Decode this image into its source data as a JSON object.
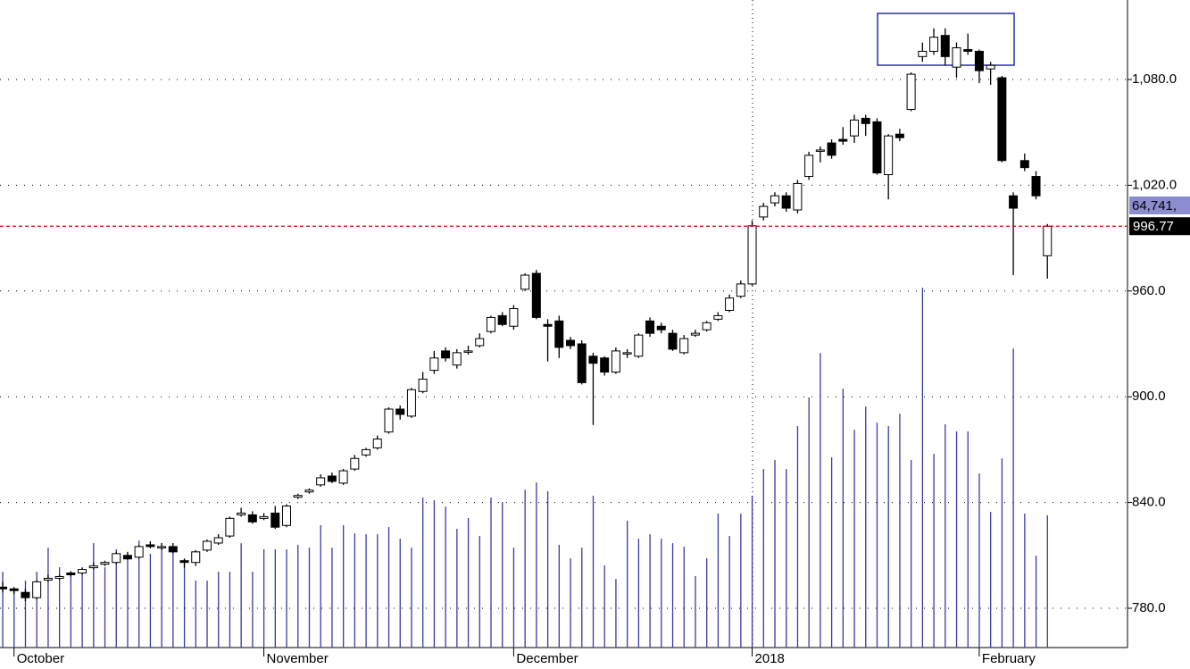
{
  "chart_data": {
    "type": "candlestick",
    "categories": [
      null,
      "October",
      null,
      null,
      null,
      null,
      null,
      null,
      null,
      null,
      null,
      null,
      null,
      null,
      null,
      null,
      null,
      null,
      null,
      null,
      null,
      null,
      null,
      "November",
      null,
      null,
      null,
      null,
      null,
      null,
      null,
      null,
      null,
      null,
      null,
      null,
      null,
      null,
      null,
      null,
      null,
      null,
      null,
      null,
      null,
      "December",
      null,
      null,
      null,
      null,
      null,
      null,
      null,
      null,
      null,
      null,
      null,
      null,
      null,
      null,
      null,
      null,
      null,
      null,
      null,
      null,
      "2018",
      null,
      null,
      null,
      null,
      null,
      null,
      null,
      null,
      null,
      null,
      null,
      null,
      null,
      null,
      null,
      null,
      null,
      null,
      null,
      "February",
      null,
      null,
      null,
      null,
      null,
      null
    ],
    "open": [
      792,
      791,
      789,
      786,
      796,
      797,
      800,
      800,
      803,
      805,
      806,
      810,
      809,
      816,
      815,
      815,
      807,
      806,
      813,
      817,
      821,
      833,
      833,
      831,
      834,
      827,
      843,
      846,
      850,
      855,
      851,
      859,
      867,
      871,
      880,
      893,
      889,
      903,
      915,
      926,
      918,
      926,
      929,
      937,
      946,
      940,
      961,
      970,
      941,
      943,
      932,
      930,
      923,
      922,
      914,
      925,
      923,
      943,
      940,
      936,
      925,
      935,
      938,
      944,
      949,
      957,
      964,
      1002,
      1010,
      1014,
      1006,
      1025,
      1040,
      1044,
      1046,
      1048,
      1058,
      1056,
      1026,
      1049,
      1063,
      1093,
      1096,
      1105,
      1087,
      1097,
      1096,
      1086,
      1081,
      1014,
      1034,
      1025,
      980
    ],
    "high": [
      795,
      792,
      791,
      796,
      799,
      799,
      801,
      803,
      806,
      807,
      812,
      812,
      816,
      818,
      817,
      817,
      808,
      813,
      819,
      822,
      832,
      837,
      835,
      834,
      838,
      839,
      845,
      848,
      856,
      857,
      859,
      867,
      871,
      878,
      894,
      895,
      905,
      914,
      926,
      928,
      927,
      929,
      936,
      946,
      948,
      952,
      970,
      972,
      944,
      946,
      934,
      932,
      925,
      923,
      928,
      927,
      936,
      945,
      942,
      938,
      935,
      938,
      943,
      948,
      958,
      966,
      1000,
      1010,
      1016,
      1016,
      1023,
      1039,
      1042,
      1046,
      1053,
      1060,
      1060,
      1058,
      1049,
      1052,
      1084,
      1101,
      1109,
      1109,
      1101,
      1106,
      1097,
      1090,
      1082,
      1016,
      1038,
      1028,
      998
    ],
    "low": [
      789,
      788,
      784,
      785,
      795,
      796,
      798,
      799,
      802,
      804,
      805,
      807,
      808,
      814,
      813,
      811,
      803,
      804,
      812,
      816,
      820,
      832,
      828,
      830,
      825,
      826,
      842,
      845,
      849,
      851,
      850,
      858,
      866,
      870,
      879,
      887,
      888,
      902,
      913,
      920,
      916,
      924,
      928,
      936,
      940,
      938,
      960,
      944,
      920,
      922,
      927,
      907,
      884,
      912,
      913,
      922,
      922,
      934,
      936,
      926,
      924,
      934,
      937,
      943,
      948,
      956,
      963,
      1000,
      1008,
      1005,
      1004,
      1023,
      1033,
      1035,
      1043,
      1044,
      1048,
      1026,
      1012,
      1045,
      1062,
      1090,
      1094,
      1088,
      1081,
      1094,
      1078,
      1077,
      1033,
      969,
      1028,
      1012,
      967
    ],
    "close": [
      791,
      790,
      786,
      795,
      797,
      798,
      799,
      802,
      804,
      806,
      811,
      808,
      815,
      815,
      815,
      812,
      806,
      812,
      818,
      820,
      831,
      834,
      829,
      832,
      826,
      838,
      844,
      847,
      854,
      852,
      858,
      865,
      870,
      876,
      893,
      890,
      904,
      910,
      922,
      922,
      925,
      926,
      933,
      945,
      941,
      950,
      969,
      945,
      940,
      928,
      929,
      908,
      919,
      914,
      926,
      925,
      935,
      936,
      938,
      927,
      933,
      936,
      942,
      946,
      956,
      964,
      997,
      1008,
      1014,
      1007,
      1021,
      1037,
      1040,
      1037,
      1045,
      1057,
      1055,
      1027,
      1048,
      1047,
      1083,
      1096,
      1104,
      1093,
      1098,
      1096,
      1085,
      1088,
      1034,
      1007,
      1030,
      1014,
      996.77
    ],
    "volume": [
      37100,
      28400,
      32800,
      37100,
      48900,
      39300,
      37100,
      39300,
      51100,
      39300,
      48100,
      42400,
      52400,
      45900,
      50300,
      46800,
      43700,
      32800,
      32800,
      37100,
      37100,
      51100,
      37100,
      48100,
      48100,
      48100,
      50300,
      48900,
      59900,
      48900,
      59900,
      55900,
      55500,
      55500,
      59000,
      53300,
      48900,
      73400,
      72100,
      69000,
      58100,
      63400,
      54600,
      73400,
      71200,
      48900,
      77300,
      80800,
      76500,
      50300,
      43700,
      48900,
      74300,
      40200,
      33600,
      62100,
      53300,
      55500,
      53300,
      51100,
      49400,
      35000,
      43700,
      65600,
      54600,
      65600,
      74300,
      87400,
      91800,
      87400,
      108400,
      122400,
      144200,
      93100,
      126700,
      106600,
      118000,
      110100,
      108400,
      114500,
      91800,
      176100,
      94800,
      109300,
      105800,
      105800,
      85200,
      66400,
      92600,
      146400,
      65600,
      45000,
      64741
    ],
    "volume_lim": [
      0,
      317000
    ],
    "volume_label": "64,741,",
    "last_price": 996.77,
    "ylim": [
      757.7,
      1125.1
    ],
    "yticks": [
      {
        "value": 780,
        "label": "780.0"
      },
      {
        "value": 840,
        "label": "840.0"
      },
      {
        "value": 900,
        "label": "900.0"
      },
      {
        "value": 960,
        "label": "960.0"
      },
      {
        "value": 1020,
        "label": "1,020.0"
      },
      {
        "value": 1080,
        "label": "1,080.0"
      }
    ],
    "grid": true,
    "up_color": "#ffffff",
    "down_color": "#000000",
    "volume_color": "#3a3aa8",
    "last_price_color": "#d40000"
  }
}
